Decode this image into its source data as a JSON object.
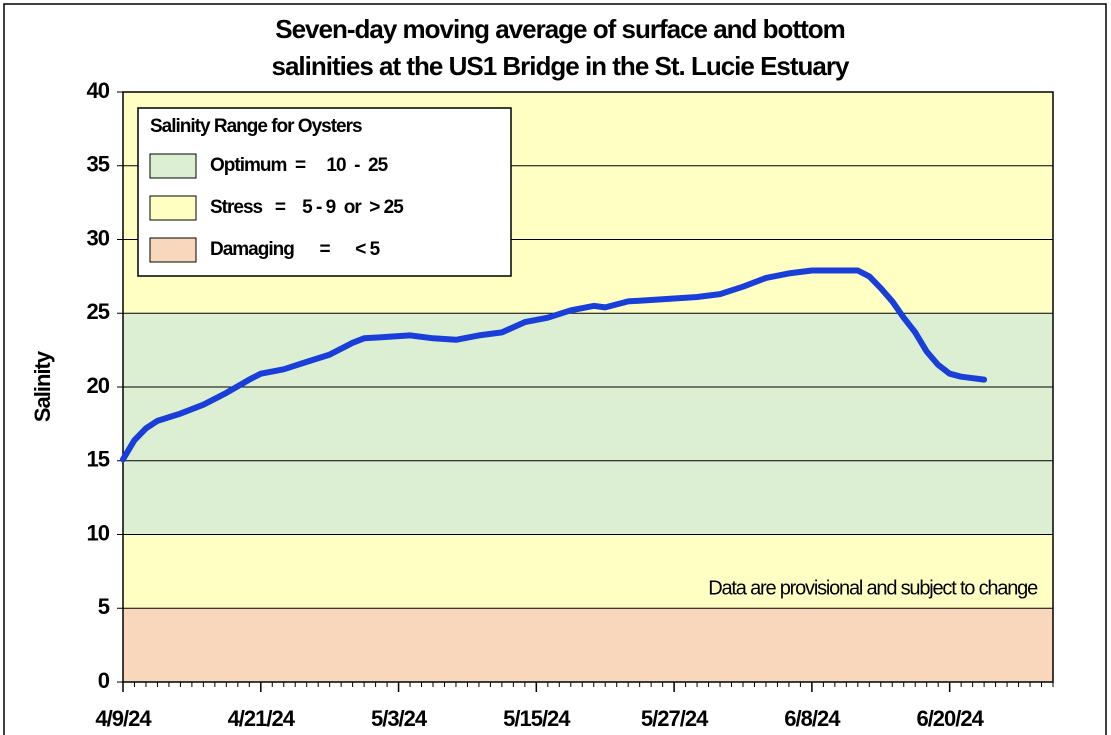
{
  "chart_data": {
    "type": "line",
    "title": [
      "Seven-day moving average of surface and bottom",
      "salinities at  the US1 Bridge in the St. Lucie Estuary"
    ],
    "y_label": "Salinity",
    "annotation": "Data are provisional and subject to change",
    "x": [
      "4/9/24",
      "4/10/24",
      "4/11/24",
      "4/12/24",
      "4/14/24",
      "4/16/24",
      "4/18/24",
      "4/20/24",
      "4/21/24",
      "4/23/24",
      "4/25/24",
      "4/27/24",
      "4/29/24",
      "4/30/24",
      "5/2/24",
      "5/4/24",
      "5/6/24",
      "5/8/24",
      "5/10/24",
      "5/12/24",
      "5/14/24",
      "5/16/24",
      "5/18/24",
      "5/20/24",
      "5/21/24",
      "5/23/24",
      "5/25/24",
      "5/27/24",
      "5/29/24",
      "5/31/24",
      "6/2/24",
      "6/4/24",
      "6/6/24",
      "6/8/24",
      "6/10/24",
      "6/12/24",
      "6/13/24",
      "6/14/24",
      "6/15/24",
      "6/16/24",
      "6/17/24",
      "6/18/24",
      "6/19/24",
      "6/20/24",
      "6/21/24",
      "6/23/24"
    ],
    "values": [
      15.1,
      16.4,
      17.2,
      17.7,
      18.2,
      18.8,
      19.6,
      20.5,
      20.9,
      21.2,
      21.7,
      22.2,
      23.0,
      23.3,
      23.4,
      23.5,
      23.3,
      23.2,
      23.5,
      23.7,
      24.4,
      24.7,
      25.2,
      25.5,
      25.4,
      25.8,
      25.9,
      26.0,
      26.1,
      26.3,
      26.8,
      27.4,
      27.7,
      27.9,
      27.9,
      27.9,
      27.5,
      26.7,
      25.8,
      24.7,
      23.7,
      22.4,
      21.5,
      20.9,
      20.7,
      20.5
    ],
    "color": "#1a3fd9",
    "xlim": [
      "4/9/24",
      "6/29/24"
    ],
    "xticks": [
      "4/9/24",
      "4/21/24",
      "5/3/24",
      "5/15/24",
      "5/27/24",
      "6/8/24",
      "6/20/24"
    ],
    "ylim": [
      0,
      40
    ],
    "yticks": [
      0,
      5,
      10,
      15,
      20,
      25,
      30,
      35,
      40
    ],
    "grid": true,
    "bands": [
      {
        "from": 0,
        "to": 5,
        "color": "#f9d7bd"
      },
      {
        "from": 5,
        "to": 10,
        "color": "#ffffc4"
      },
      {
        "from": 10,
        "to": 25,
        "color": "#ddefd2"
      },
      {
        "from": 25,
        "to": 40,
        "color": "#ffffc4"
      }
    ],
    "legend": {
      "title": "Salinity Range for Oysters",
      "entries": [
        {
          "label": "Optimum  =     10  -  25",
          "color": "#ddefd2"
        },
        {
          "label": "Stress   =    5 - 9  or  > 25",
          "color": "#ffffc4"
        },
        {
          "label": "Damaging      =      < 5",
          "color": "#f9d7bd"
        }
      ]
    }
  }
}
